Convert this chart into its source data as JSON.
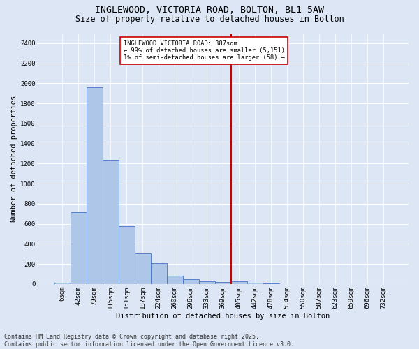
{
  "title": "INGLEWOOD, VICTORIA ROAD, BOLTON, BL1 5AW",
  "subtitle": "Size of property relative to detached houses in Bolton",
  "xlabel": "Distribution of detached houses by size in Bolton",
  "ylabel": "Number of detached properties",
  "footnote": "Contains HM Land Registry data © Crown copyright and database right 2025.\nContains public sector information licensed under the Open Government Licence v3.0.",
  "bar_labels": [
    "6sqm",
    "42sqm",
    "79sqm",
    "115sqm",
    "151sqm",
    "187sqm",
    "224sqm",
    "260sqm",
    "296sqm",
    "333sqm",
    "369sqm",
    "405sqm",
    "442sqm",
    "478sqm",
    "514sqm",
    "550sqm",
    "587sqm",
    "623sqm",
    "659sqm",
    "696sqm",
    "732sqm"
  ],
  "bar_values": [
    15,
    715,
    1960,
    1235,
    575,
    305,
    205,
    85,
    45,
    30,
    20,
    30,
    10,
    5,
    0,
    0,
    0,
    0,
    0,
    0,
    0
  ],
  "bar_color": "#aec6e8",
  "bar_edge_color": "#4472c4",
  "vline_index": 10.5,
  "vline_color": "#cc0000",
  "annotation_text": "INGLEWOOD VICTORIA ROAD: 387sqm\n← 99% of detached houses are smaller (5,151)\n1% of semi-detached houses are larger (58) →",
  "annotation_box_color": "#ffffff",
  "annotation_box_edge": "#cc0000",
  "ylim": [
    0,
    2500
  ],
  "yticks": [
    0,
    200,
    400,
    600,
    800,
    1000,
    1200,
    1400,
    1600,
    1800,
    2000,
    2200,
    2400
  ],
  "bg_color": "#dce6f5",
  "grid_color": "#ffffff",
  "title_fontsize": 9.5,
  "subtitle_fontsize": 8.5,
  "label_fontsize": 7.5,
  "tick_fontsize": 6.5,
  "footnote_fontsize": 6.0
}
